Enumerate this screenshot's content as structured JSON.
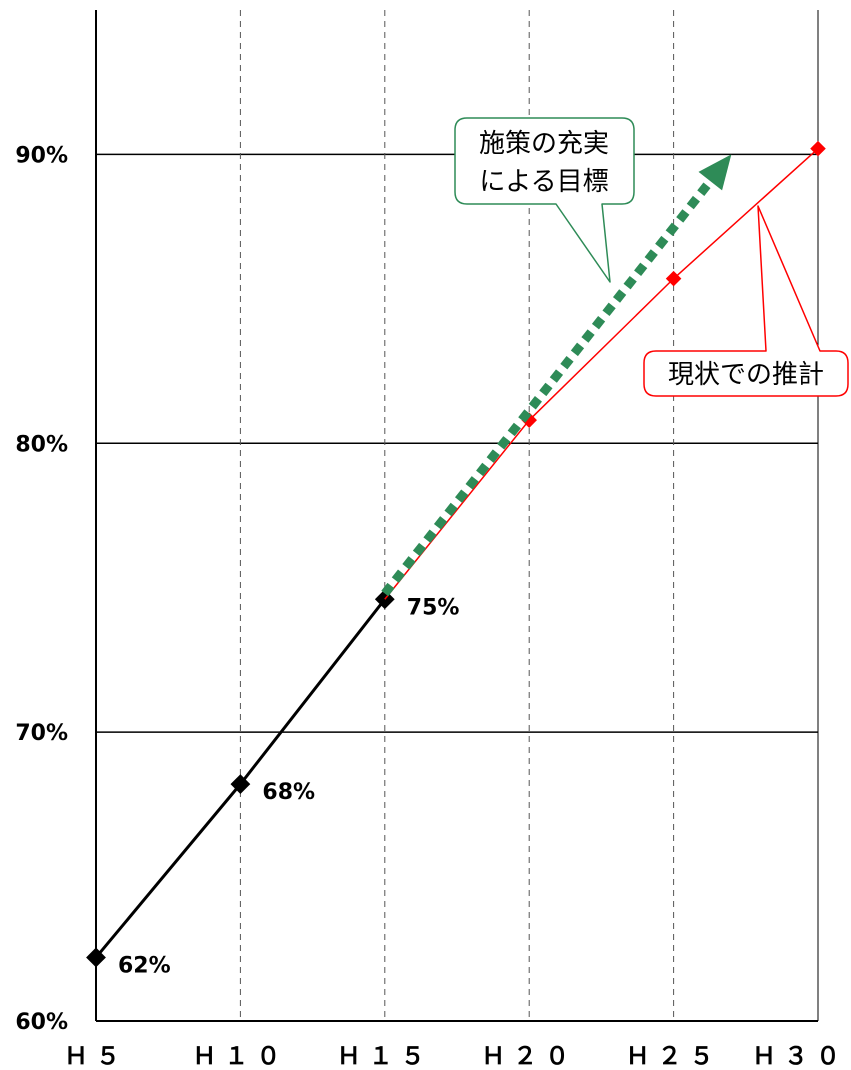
{
  "chart_data": {
    "type": "line",
    "categories": [
      "H5",
      "H10",
      "H15",
      "H20",
      "H25",
      "H30"
    ],
    "category_labels": [
      "Ｈ５",
      "Ｈ１０",
      "Ｈ１５",
      "Ｈ２０",
      "Ｈ２５",
      "Ｈ３０"
    ],
    "ylim": [
      60,
      95
    ],
    "y_ticks": [
      60,
      70,
      80,
      90
    ],
    "y_tick_labels": [
      "60%",
      "70%",
      "80%",
      "90%"
    ],
    "grid": {
      "horizontal": true,
      "vertical": "dashed"
    },
    "series": [
      {
        "role": "actual",
        "color": "#000000",
        "line_style": "solid",
        "points": [
          {
            "x": "H5",
            "y": 62.2,
            "label": "62%"
          },
          {
            "x": "H10",
            "y": 68.2,
            "label": "68%"
          },
          {
            "x": "H15",
            "y": 74.6,
            "label": "75%"
          }
        ]
      },
      {
        "name": "現状での推計",
        "role": "projection",
        "color": "#ff0000",
        "line_style": "solid",
        "points": [
          {
            "x": "H15",
            "y": 74.6
          },
          {
            "x": "H20",
            "y": 80.8
          },
          {
            "x": "H25",
            "y": 85.7
          },
          {
            "x": "H30",
            "y": 90.2
          }
        ]
      },
      {
        "name": "施策の充実による目標",
        "role": "target",
        "color": "#2e8b57",
        "line_style": "dotted-arrow",
        "points": [
          {
            "x": "H15",
            "y": 74.8
          },
          {
            "x": "H27",
            "y": 90.0
          }
        ]
      }
    ],
    "annotations": [
      {
        "series": "target",
        "lines": [
          "施策の充実",
          "による目標"
        ],
        "border_color": "#2e8b57"
      },
      {
        "series": "projection",
        "lines": [
          "現状での推計"
        ],
        "border_color": "#ff0000"
      }
    ]
  }
}
